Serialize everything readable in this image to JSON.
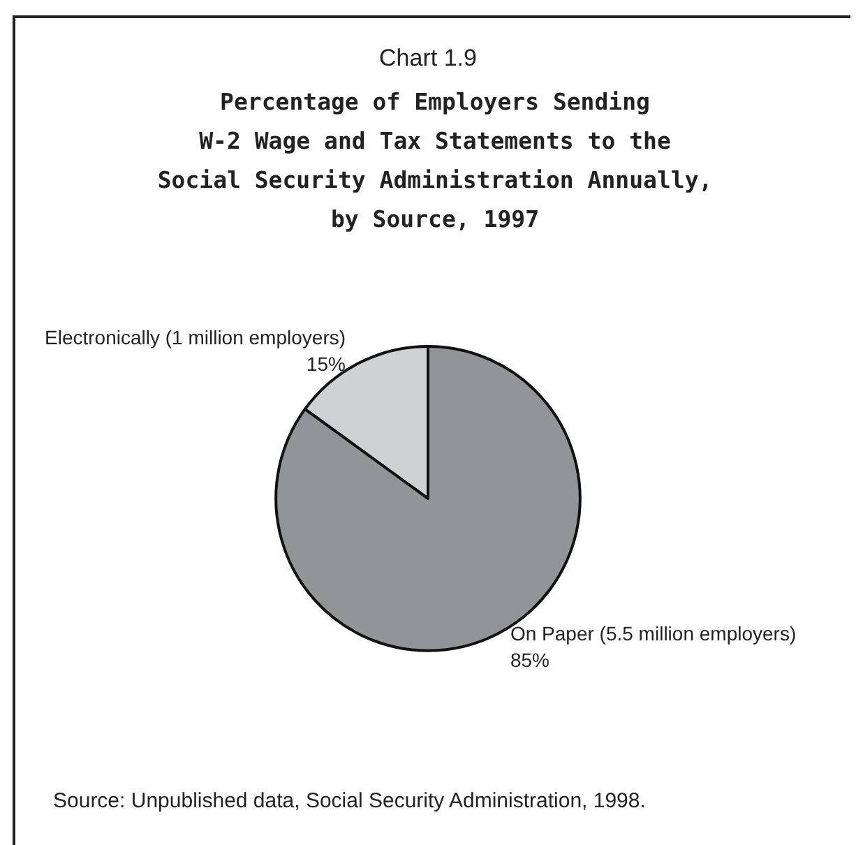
{
  "chart_data": {
    "type": "pie",
    "subtitle": "Chart 1.9",
    "title": "Percentage of Employers Sending\nW-2 Wage and Tax Statements to the\nSocial Security Administration Annually,\nby Source, 1997",
    "categories": [
      "Electronically (1 million employers)",
      "On Paper (5.5 million employers)"
    ],
    "values": [
      15,
      85
    ],
    "colors": [
      "#d0d1d3",
      "#939497"
    ],
    "value_labels": [
      "15%",
      "85%"
    ],
    "annotations": [
      "Source: Unpublished data, Social Security Administration, 1998."
    ],
    "legend": false
  }
}
